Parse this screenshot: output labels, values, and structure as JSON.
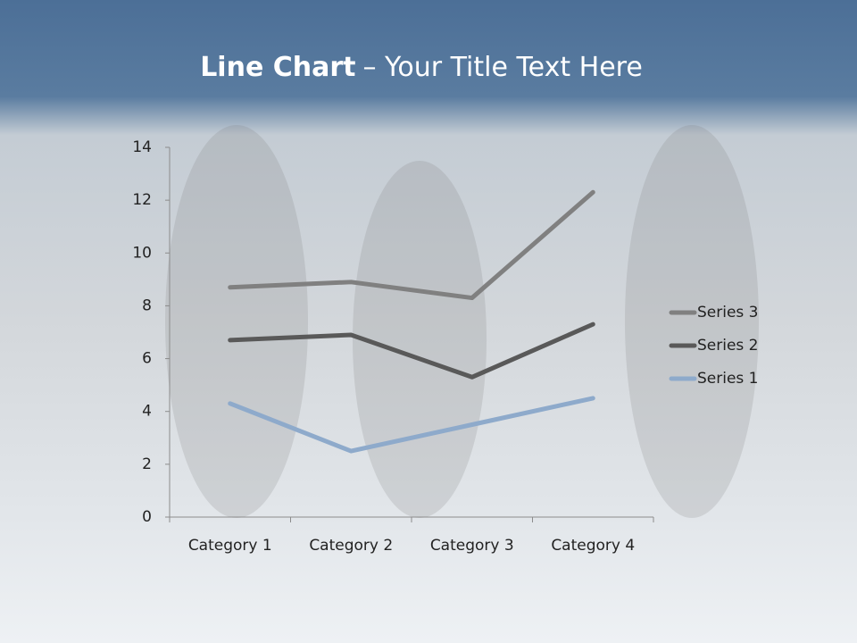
{
  "chart_data": {
    "type": "line",
    "stacked": true,
    "title": [
      "Line Chart",
      "– Your Title Text Here"
    ],
    "categories": [
      "Category 1",
      "Category 2",
      "Category 3",
      "Category 4"
    ],
    "series": [
      {
        "name": "Series 1",
        "color": "#8eaacb",
        "values": [
          4.3,
          2.5,
          3.5,
          4.5
        ]
      },
      {
        "name": "Series 2",
        "color": "#595959",
        "values": [
          2.4,
          4.4,
          1.8,
          2.8
        ]
      },
      {
        "name": "Series 3",
        "color": "#808080",
        "values": [
          2,
          2,
          3,
          5
        ]
      }
    ],
    "ylim": [
      0,
      14
    ],
    "yticks": [
      0,
      2,
      4,
      6,
      8,
      10,
      12,
      14
    ],
    "grid": false,
    "legend": "right"
  }
}
